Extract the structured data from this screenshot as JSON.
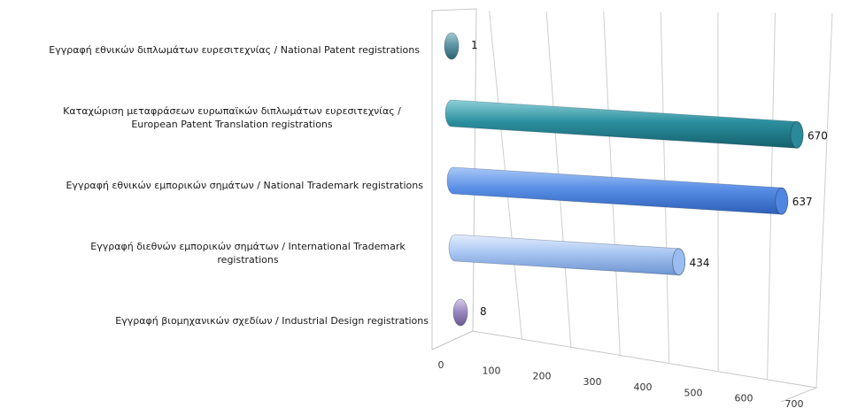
{
  "chart_data": {
    "type": "bar",
    "orientation": "horizontal",
    "style": "3d-cylinder",
    "categories": [
      [
        "Εγγραφή  εθνικών διπλωμάτων ευρεσιτεχνίας / National Patent registrations"
      ],
      [
        "Καταχώριση μεταφράσεων ευρωπαϊκών διπλωμάτων ευρεσιτεχνίας /",
        "European Patent Translation registrations"
      ],
      [
        "Εγγραφή  εθνικών εμπορικών σημάτων / National Trademark registrations"
      ],
      [
        "Εγγραφή  διεθνών εμπορικών σημάτων / International Trademark",
        "registrations"
      ],
      [
        "Εγγραφή  βιομηχανικών σχεδίων / Industrial Design registrations"
      ]
    ],
    "values": [
      1,
      670,
      637,
      434,
      8
    ],
    "colors": [
      "#4a8a9c",
      "#2a8a99",
      "#4f86e0",
      "#9bbcf0",
      "#9a88c0"
    ],
    "xlim": [
      0,
      700
    ],
    "xticks": [
      "0",
      "100",
      "200",
      "300",
      "400",
      "500",
      "600",
      "700"
    ],
    "grid": true,
    "legend": "none"
  }
}
